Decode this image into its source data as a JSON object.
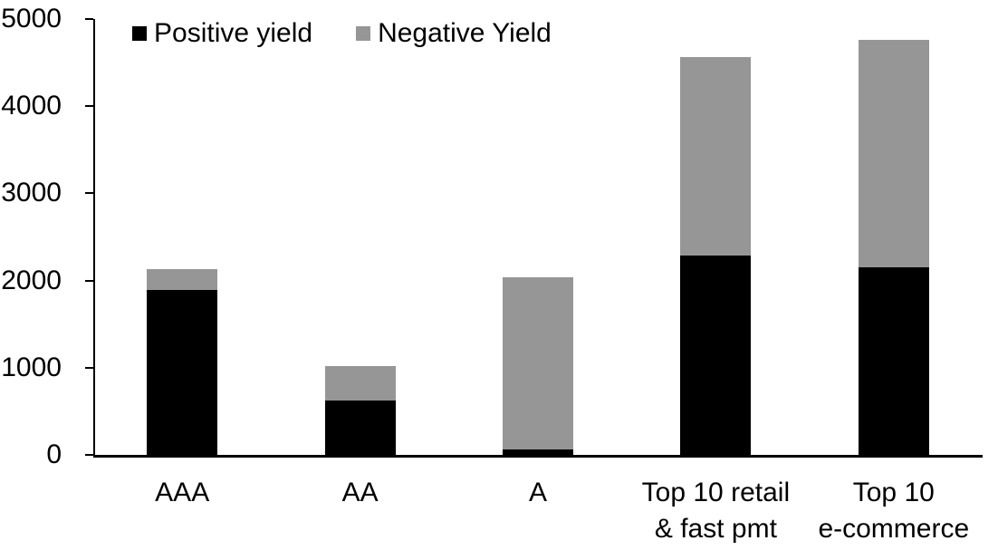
{
  "chart_data": {
    "type": "bar",
    "stacked": true,
    "title": "",
    "xlabel": "",
    "ylabel": "",
    "grid": false,
    "legend_position": "top-left",
    "ylim": [
      0,
      5000
    ],
    "yticks": [
      0,
      1000,
      2000,
      3000,
      4000,
      5000
    ],
    "categories": [
      "AAA",
      "AA",
      "A",
      "Top 10 retail & fast pmt",
      "Top 10 e-commerce"
    ],
    "category_label_lines": [
      [
        "AAA"
      ],
      [
        "AA"
      ],
      [
        "A"
      ],
      [
        "Top 10 retail",
        "& fast pmt"
      ],
      [
        "Top 10",
        "e-commerce"
      ]
    ],
    "series": [
      {
        "name": "Positive yield",
        "color": "#000000",
        "values": [
          1890,
          620,
          60,
          2290,
          2150
        ]
      },
      {
        "name": "Negative Yield",
        "color": "#969696",
        "values": [
          240,
          395,
          1980,
          2270,
          2610
        ]
      }
    ],
    "totals": [
      2130,
      1015,
      2040,
      4560,
      4760
    ]
  },
  "colors": {
    "axis": "#000000",
    "background": "#ffffff",
    "positive_series": "#000000",
    "negative_series": "#969696"
  }
}
